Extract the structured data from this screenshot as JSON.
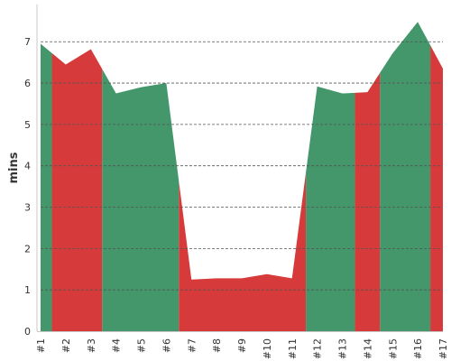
{
  "chart_data": {
    "type": "area",
    "ylabel": "mins",
    "xlabel": "",
    "ylim": [
      0,
      7.9
    ],
    "y_ticks": [
      0,
      1,
      2,
      3,
      4,
      5,
      6,
      7
    ],
    "categories": [
      "#1",
      "#2",
      "#3",
      "#4",
      "#5",
      "#6",
      "#7",
      "#8",
      "#9",
      "#10",
      "#11",
      "#12",
      "#13",
      "#14",
      "#15",
      "#16",
      "#17"
    ],
    "values": [
      6.95,
      6.45,
      6.82,
      5.75,
      5.9,
      6.0,
      1.25,
      1.28,
      1.28,
      1.38,
      1.28,
      5.92,
      5.75,
      5.78,
      6.72,
      7.48,
      6.35
    ],
    "zones": [
      {
        "from": "#1",
        "to": "#1.5",
        "state": "good"
      }
    ],
    "segments": [
      {
        "start": 0.0,
        "end": 0.45,
        "state": "good"
      },
      {
        "start": 0.45,
        "end": 2.45,
        "state": "bad"
      },
      {
        "start": 2.45,
        "end": 5.5,
        "state": "good"
      },
      {
        "start": 5.5,
        "end": 10.55,
        "state": "bad"
      },
      {
        "start": 10.55,
        "end": 12.5,
        "state": "good"
      },
      {
        "start": 12.5,
        "end": 13.5,
        "state": "bad"
      },
      {
        "start": 13.5,
        "end": 15.5,
        "state": "good"
      },
      {
        "start": 15.5,
        "end": 16.0,
        "state": "bad"
      }
    ],
    "colors": {
      "good": "#43976b",
      "bad": "#d63a3a",
      "grid": "#555555",
      "axis": "#c8c8c8"
    },
    "grid_y": true,
    "legend": "none"
  }
}
